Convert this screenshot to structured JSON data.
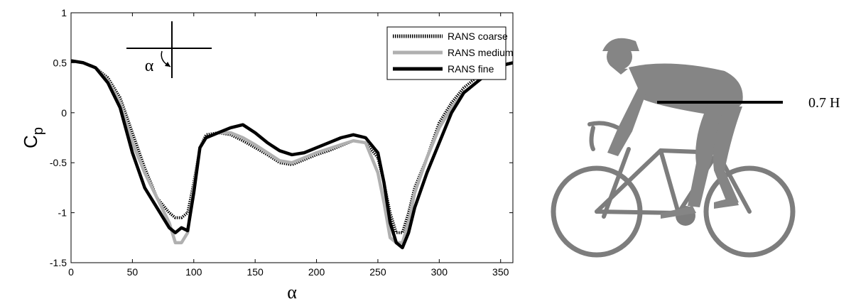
{
  "chart_data": {
    "type": "line",
    "xlabel": "α",
    "ylabel": "C",
    "ylabel_sub": "p",
    "annotation": "α",
    "x": [
      0,
      10,
      20,
      30,
      40,
      50,
      60,
      70,
      80,
      85,
      90,
      95,
      100,
      105,
      110,
      120,
      130,
      140,
      150,
      160,
      170,
      180,
      190,
      200,
      210,
      220,
      230,
      240,
      250,
      255,
      260,
      265,
      270,
      275,
      280,
      290,
      300,
      310,
      320,
      330,
      340,
      350,
      360
    ],
    "series": [
      {
        "name": "RANS coarse",
        "color": "#000000",
        "dash": true,
        "values": [
          0.52,
          0.5,
          0.45,
          0.35,
          0.15,
          -0.2,
          -0.55,
          -0.85,
          -1.0,
          -1.05,
          -1.05,
          -1.0,
          -0.7,
          -0.35,
          -0.22,
          -0.2,
          -0.22,
          -0.28,
          -0.35,
          -0.42,
          -0.5,
          -0.52,
          -0.47,
          -0.42,
          -0.38,
          -0.33,
          -0.28,
          -0.3,
          -0.45,
          -0.7,
          -1.0,
          -1.2,
          -1.2,
          -1.0,
          -0.75,
          -0.45,
          -0.1,
          0.1,
          0.25,
          0.35,
          0.42,
          0.48,
          0.5
        ]
      },
      {
        "name": "RANS medium",
        "color": "#b0b0b0",
        "dash": false,
        "values": [
          0.52,
          0.5,
          0.45,
          0.32,
          0.1,
          -0.3,
          -0.6,
          -0.85,
          -1.1,
          -1.3,
          -1.3,
          -1.2,
          -0.75,
          -0.35,
          -0.25,
          -0.2,
          -0.2,
          -0.25,
          -0.32,
          -0.4,
          -0.48,
          -0.5,
          -0.45,
          -0.4,
          -0.36,
          -0.32,
          -0.28,
          -0.3,
          -0.6,
          -0.9,
          -1.25,
          -1.3,
          -1.3,
          -1.1,
          -0.8,
          -0.45,
          -0.15,
          0.05,
          0.2,
          0.3,
          0.4,
          0.47,
          0.5
        ]
      },
      {
        "name": "RANS fine",
        "color": "#000000",
        "dash": false,
        "values": [
          0.52,
          0.5,
          0.45,
          0.3,
          0.05,
          -0.4,
          -0.75,
          -0.95,
          -1.15,
          -1.2,
          -1.15,
          -1.18,
          -0.8,
          -0.35,
          -0.25,
          -0.2,
          -0.15,
          -0.12,
          -0.2,
          -0.3,
          -0.38,
          -0.42,
          -0.4,
          -0.35,
          -0.3,
          -0.25,
          -0.22,
          -0.25,
          -0.4,
          -0.7,
          -1.1,
          -1.3,
          -1.35,
          -1.2,
          -0.95,
          -0.6,
          -0.3,
          0,
          0.2,
          0.3,
          0.4,
          0.47,
          0.5
        ]
      }
    ],
    "xlim": [
      0,
      360
    ],
    "xticks": [
      0,
      50,
      100,
      150,
      200,
      250,
      300,
      350
    ],
    "ylim": [
      -1.5,
      1
    ],
    "yticks": [
      -1.5,
      -1,
      -0.5,
      0,
      0.5,
      1
    ],
    "legend": "upper right"
  },
  "figure": {
    "height_label": "0.7 H"
  }
}
